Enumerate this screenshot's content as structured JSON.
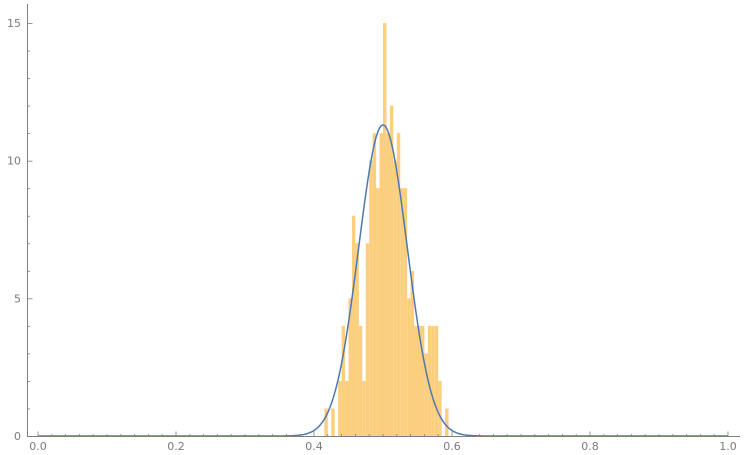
{
  "chart_data": {
    "type": "bar",
    "title": "",
    "xlabel": "",
    "ylabel": "",
    "xlim": [
      0.0,
      1.0
    ],
    "ylim": [
      0,
      15
    ],
    "x_ticks": [
      "0.0",
      "0.2",
      "0.4",
      "0.6",
      "0.8",
      "1.0"
    ],
    "y_ticks": [
      "0",
      "5",
      "10",
      "15"
    ],
    "grid": false,
    "histogram": {
      "bin_width": 0.005,
      "bins": [
        {
          "x": 0.415,
          "count": 1
        },
        {
          "x": 0.425,
          "count": 1
        },
        {
          "x": 0.435,
          "count": 2
        },
        {
          "x": 0.44,
          "count": 4
        },
        {
          "x": 0.445,
          "count": 2
        },
        {
          "x": 0.45,
          "count": 5
        },
        {
          "x": 0.455,
          "count": 8
        },
        {
          "x": 0.46,
          "count": 7
        },
        {
          "x": 0.465,
          "count": 4
        },
        {
          "x": 0.47,
          "count": 2
        },
        {
          "x": 0.475,
          "count": 7
        },
        {
          "x": 0.48,
          "count": 10
        },
        {
          "x": 0.485,
          "count": 11
        },
        {
          "x": 0.49,
          "count": 9
        },
        {
          "x": 0.495,
          "count": 11
        },
        {
          "x": 0.5,
          "count": 15
        },
        {
          "x": 0.505,
          "count": 11
        },
        {
          "x": 0.51,
          "count": 12
        },
        {
          "x": 0.515,
          "count": 10
        },
        {
          "x": 0.52,
          "count": 11
        },
        {
          "x": 0.525,
          "count": 9
        },
        {
          "x": 0.53,
          "count": 9
        },
        {
          "x": 0.535,
          "count": 5
        },
        {
          "x": 0.54,
          "count": 6
        },
        {
          "x": 0.545,
          "count": 4
        },
        {
          "x": 0.55,
          "count": 4
        },
        {
          "x": 0.555,
          "count": 4
        },
        {
          "x": 0.56,
          "count": 3
        },
        {
          "x": 0.565,
          "count": 4
        },
        {
          "x": 0.57,
          "count": 4
        },
        {
          "x": 0.575,
          "count": 4
        },
        {
          "x": 0.58,
          "count": 2
        },
        {
          "x": 0.59,
          "count": 1
        }
      ],
      "color": "#fbcf7e"
    },
    "density_curve": {
      "shape": "normal",
      "mean": 0.5,
      "sd": 0.0352,
      "peak": 11.3,
      "color": "#4f77b1"
    },
    "colors": {
      "axis": "#7f7f7f",
      "tick_text": "#7a7a7a"
    }
  }
}
